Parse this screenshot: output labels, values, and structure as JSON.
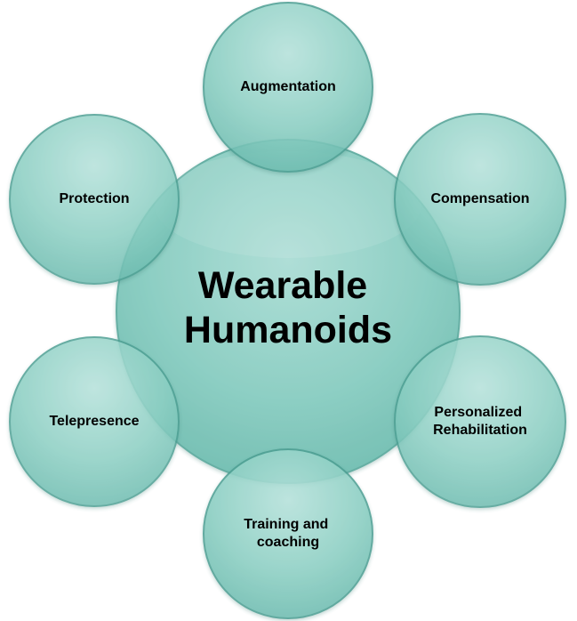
{
  "center": {
    "lines": [
      "Wearable",
      "Humanoids"
    ]
  },
  "nodes": [
    {
      "id": "augmentation",
      "lines": [
        "Augmentation"
      ]
    },
    {
      "id": "compensation",
      "lines": [
        "Compensation"
      ]
    },
    {
      "id": "personalized-rehabilitation",
      "lines": [
        "Personalized",
        "Rehabilitation"
      ]
    },
    {
      "id": "training-coaching",
      "lines": [
        "Training and",
        "coaching"
      ]
    },
    {
      "id": "telepresence",
      "lines": [
        "Telepresence"
      ]
    },
    {
      "id": "protection",
      "lines": [
        "Protection"
      ]
    }
  ],
  "colors": {
    "fill_light": "#a9dcd4",
    "fill_mid": "#7fc9bd",
    "fill_dark": "#5eb3a6",
    "stroke": "#4e9f93"
  }
}
